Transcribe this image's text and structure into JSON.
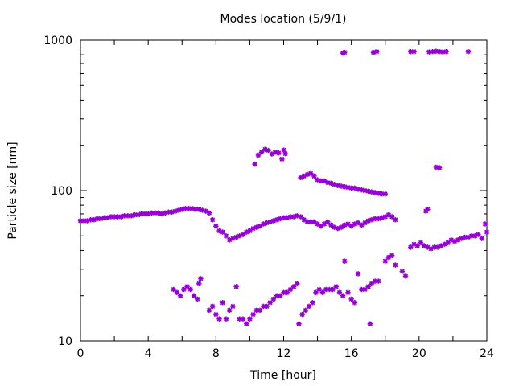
{
  "chart_data": {
    "type": "scatter",
    "title": "Modes location (5/9/1)",
    "xlabel": "Time [hour]",
    "ylabel": "Particle size [nm]",
    "xlim": [
      0,
      24
    ],
    "ylim": [
      10,
      1000
    ],
    "yscale": "log",
    "x_ticks": [
      0,
      4,
      8,
      12,
      16,
      20,
      24
    ],
    "y_ticks": [
      10,
      100,
      1000
    ],
    "marker_color": "#9400d3",
    "marker": "asterisk",
    "grid": false,
    "legend": "none",
    "series": [
      {
        "points": [
          [
            0.0,
            63
          ],
          [
            0.2,
            63
          ],
          [
            0.4,
            63
          ],
          [
            0.6,
            64
          ],
          [
            0.8,
            64
          ],
          [
            1.0,
            65
          ],
          [
            1.2,
            65
          ],
          [
            1.4,
            66
          ],
          [
            1.6,
            66
          ],
          [
            1.8,
            67
          ],
          [
            2.0,
            67
          ],
          [
            2.2,
            67
          ],
          [
            2.4,
            67
          ],
          [
            2.6,
            68
          ],
          [
            2.8,
            68
          ],
          [
            3.0,
            68
          ],
          [
            3.2,
            69
          ],
          [
            3.4,
            69
          ],
          [
            3.6,
            70
          ],
          [
            3.8,
            70
          ],
          [
            4.0,
            70
          ],
          [
            4.2,
            71
          ],
          [
            4.4,
            71
          ],
          [
            4.6,
            71
          ],
          [
            4.8,
            70
          ],
          [
            5.0,
            71
          ],
          [
            5.2,
            72
          ],
          [
            5.4,
            72
          ],
          [
            5.6,
            73
          ],
          [
            5.8,
            74
          ],
          [
            6.0,
            75
          ],
          [
            6.2,
            76
          ],
          [
            6.4,
            76
          ],
          [
            6.6,
            76
          ],
          [
            6.8,
            75
          ],
          [
            7.0,
            75
          ],
          [
            7.2,
            74
          ],
          [
            7.4,
            73
          ],
          [
            7.6,
            71
          ],
          [
            7.8,
            64
          ],
          [
            8.0,
            58
          ],
          [
            8.2,
            54
          ],
          [
            8.4,
            53
          ],
          [
            8.6,
            50
          ],
          [
            8.8,
            47
          ],
          [
            9.0,
            48
          ],
          [
            9.2,
            49
          ],
          [
            9.4,
            50
          ],
          [
            9.6,
            51
          ],
          [
            9.8,
            53
          ],
          [
            10.0,
            54
          ],
          [
            10.2,
            56
          ],
          [
            10.4,
            57
          ],
          [
            10.6,
            58
          ],
          [
            10.8,
            60
          ],
          [
            11.0,
            61
          ],
          [
            11.2,
            62
          ],
          [
            11.4,
            63
          ],
          [
            11.6,
            64
          ],
          [
            11.8,
            65
          ],
          [
            12.0,
            66
          ],
          [
            12.2,
            66
          ],
          [
            12.4,
            67
          ],
          [
            12.6,
            67
          ],
          [
            12.8,
            68
          ],
          [
            13.0,
            67
          ],
          [
            13.2,
            64
          ],
          [
            13.4,
            62
          ],
          [
            13.6,
            62
          ],
          [
            13.8,
            62
          ],
          [
            14.0,
            60
          ],
          [
            14.2,
            58
          ],
          [
            14.4,
            60
          ],
          [
            14.6,
            62
          ],
          [
            14.8,
            59
          ],
          [
            15.0,
            57
          ],
          [
            15.2,
            56
          ],
          [
            15.4,
            57
          ],
          [
            15.6,
            59
          ],
          [
            15.8,
            60
          ],
          [
            16.0,
            58
          ],
          [
            16.2,
            60
          ],
          [
            16.4,
            61
          ],
          [
            16.6,
            59
          ],
          [
            16.8,
            61
          ],
          [
            17.0,
            63
          ],
          [
            17.2,
            64
          ],
          [
            17.4,
            65
          ],
          [
            17.6,
            65
          ],
          [
            17.8,
            66
          ],
          [
            18.0,
            67
          ],
          [
            18.2,
            69
          ],
          [
            18.4,
            67
          ],
          [
            18.6,
            64
          ],
          [
            10.3,
            150
          ],
          [
            10.5,
            172
          ],
          [
            10.7,
            180
          ],
          [
            10.9,
            188
          ],
          [
            11.1,
            185
          ],
          [
            11.3,
            175
          ],
          [
            11.5,
            180
          ],
          [
            11.7,
            178
          ],
          [
            11.9,
            162
          ],
          [
            12.0,
            186
          ],
          [
            12.1,
            176
          ],
          [
            13.0,
            122
          ],
          [
            13.2,
            125
          ],
          [
            13.4,
            128
          ],
          [
            13.6,
            130
          ],
          [
            13.8,
            125
          ],
          [
            14.0,
            118
          ],
          [
            14.2,
            116
          ],
          [
            14.4,
            116
          ],
          [
            14.6,
            113
          ],
          [
            14.8,
            112
          ],
          [
            15.0,
            110
          ],
          [
            15.2,
            108
          ],
          [
            15.4,
            107
          ],
          [
            15.6,
            106
          ],
          [
            15.8,
            105
          ],
          [
            16.0,
            104
          ],
          [
            16.2,
            104
          ],
          [
            16.4,
            102
          ],
          [
            16.6,
            101
          ],
          [
            16.8,
            100
          ],
          [
            17.0,
            99
          ],
          [
            17.2,
            98
          ],
          [
            17.4,
            97
          ],
          [
            17.6,
            96
          ],
          [
            17.8,
            95
          ],
          [
            18.0,
            95
          ],
          [
            15.5,
            820
          ],
          [
            15.6,
            830
          ],
          [
            17.3,
            830
          ],
          [
            17.5,
            840
          ],
          [
            19.5,
            840
          ],
          [
            19.7,
            840
          ],
          [
            20.6,
            835
          ],
          [
            20.8,
            840
          ],
          [
            21.0,
            845
          ],
          [
            21.2,
            840
          ],
          [
            21.4,
            835
          ],
          [
            21.6,
            840
          ],
          [
            22.9,
            840
          ],
          [
            20.4,
            73
          ],
          [
            20.5,
            75
          ],
          [
            21.0,
            143
          ],
          [
            21.2,
            142
          ],
          [
            5.5,
            22
          ],
          [
            5.7,
            21
          ],
          [
            5.9,
            20
          ],
          [
            6.1,
            22
          ],
          [
            6.3,
            23
          ],
          [
            6.5,
            22
          ],
          [
            6.7,
            20
          ],
          [
            6.9,
            19
          ],
          [
            7.0,
            24
          ],
          [
            7.1,
            26
          ],
          [
            7.6,
            16
          ],
          [
            7.8,
            17
          ],
          [
            8.0,
            15
          ],
          [
            8.2,
            14
          ],
          [
            8.4,
            18
          ],
          [
            8.6,
            14
          ],
          [
            8.8,
            16
          ],
          [
            9.0,
            17
          ],
          [
            9.2,
            23
          ],
          [
            9.4,
            14
          ],
          [
            9.6,
            14
          ],
          [
            9.8,
            13
          ],
          [
            10.0,
            14
          ],
          [
            10.2,
            15
          ],
          [
            10.4,
            16
          ],
          [
            10.6,
            16
          ],
          [
            10.8,
            17
          ],
          [
            11.0,
            17
          ],
          [
            11.2,
            18
          ],
          [
            11.4,
            19
          ],
          [
            11.6,
            20
          ],
          [
            11.8,
            20
          ],
          [
            12.0,
            21
          ],
          [
            12.2,
            21
          ],
          [
            12.4,
            22
          ],
          [
            12.6,
            23
          ],
          [
            12.8,
            24
          ],
          [
            12.9,
            13
          ],
          [
            13.1,
            15
          ],
          [
            13.3,
            16
          ],
          [
            13.5,
            17
          ],
          [
            13.7,
            18
          ],
          [
            13.9,
            21
          ],
          [
            14.1,
            22
          ],
          [
            14.3,
            21
          ],
          [
            14.5,
            22
          ],
          [
            14.7,
            22
          ],
          [
            14.9,
            22
          ],
          [
            15.1,
            23
          ],
          [
            15.3,
            21
          ],
          [
            15.5,
            20
          ],
          [
            15.6,
            34
          ],
          [
            15.8,
            21
          ],
          [
            16.0,
            19
          ],
          [
            16.2,
            18
          ],
          [
            16.4,
            28
          ],
          [
            16.6,
            22
          ],
          [
            16.8,
            22
          ],
          [
            17.0,
            23
          ],
          [
            17.2,
            24
          ],
          [
            17.4,
            25
          ],
          [
            17.6,
            25
          ],
          [
            17.1,
            13
          ],
          [
            18.0,
            34
          ],
          [
            18.2,
            36
          ],
          [
            18.4,
            37
          ],
          [
            18.6,
            32
          ],
          [
            19.0,
            29
          ],
          [
            19.2,
            27
          ],
          [
            19.5,
            42
          ],
          [
            19.7,
            44
          ],
          [
            19.9,
            43
          ],
          [
            20.1,
            45
          ],
          [
            20.3,
            43
          ],
          [
            20.5,
            42
          ],
          [
            20.7,
            41
          ],
          [
            20.9,
            42
          ],
          [
            21.1,
            42
          ],
          [
            21.3,
            43
          ],
          [
            21.5,
            44
          ],
          [
            21.7,
            45
          ],
          [
            21.9,
            47
          ],
          [
            22.1,
            46
          ],
          [
            22.3,
            47
          ],
          [
            22.5,
            48
          ],
          [
            22.7,
            49
          ],
          [
            22.9,
            49
          ],
          [
            23.1,
            50
          ],
          [
            23.3,
            50
          ],
          [
            23.5,
            51
          ],
          [
            23.7,
            48
          ],
          [
            23.9,
            60
          ],
          [
            24.0,
            53
          ]
        ]
      }
    ]
  }
}
